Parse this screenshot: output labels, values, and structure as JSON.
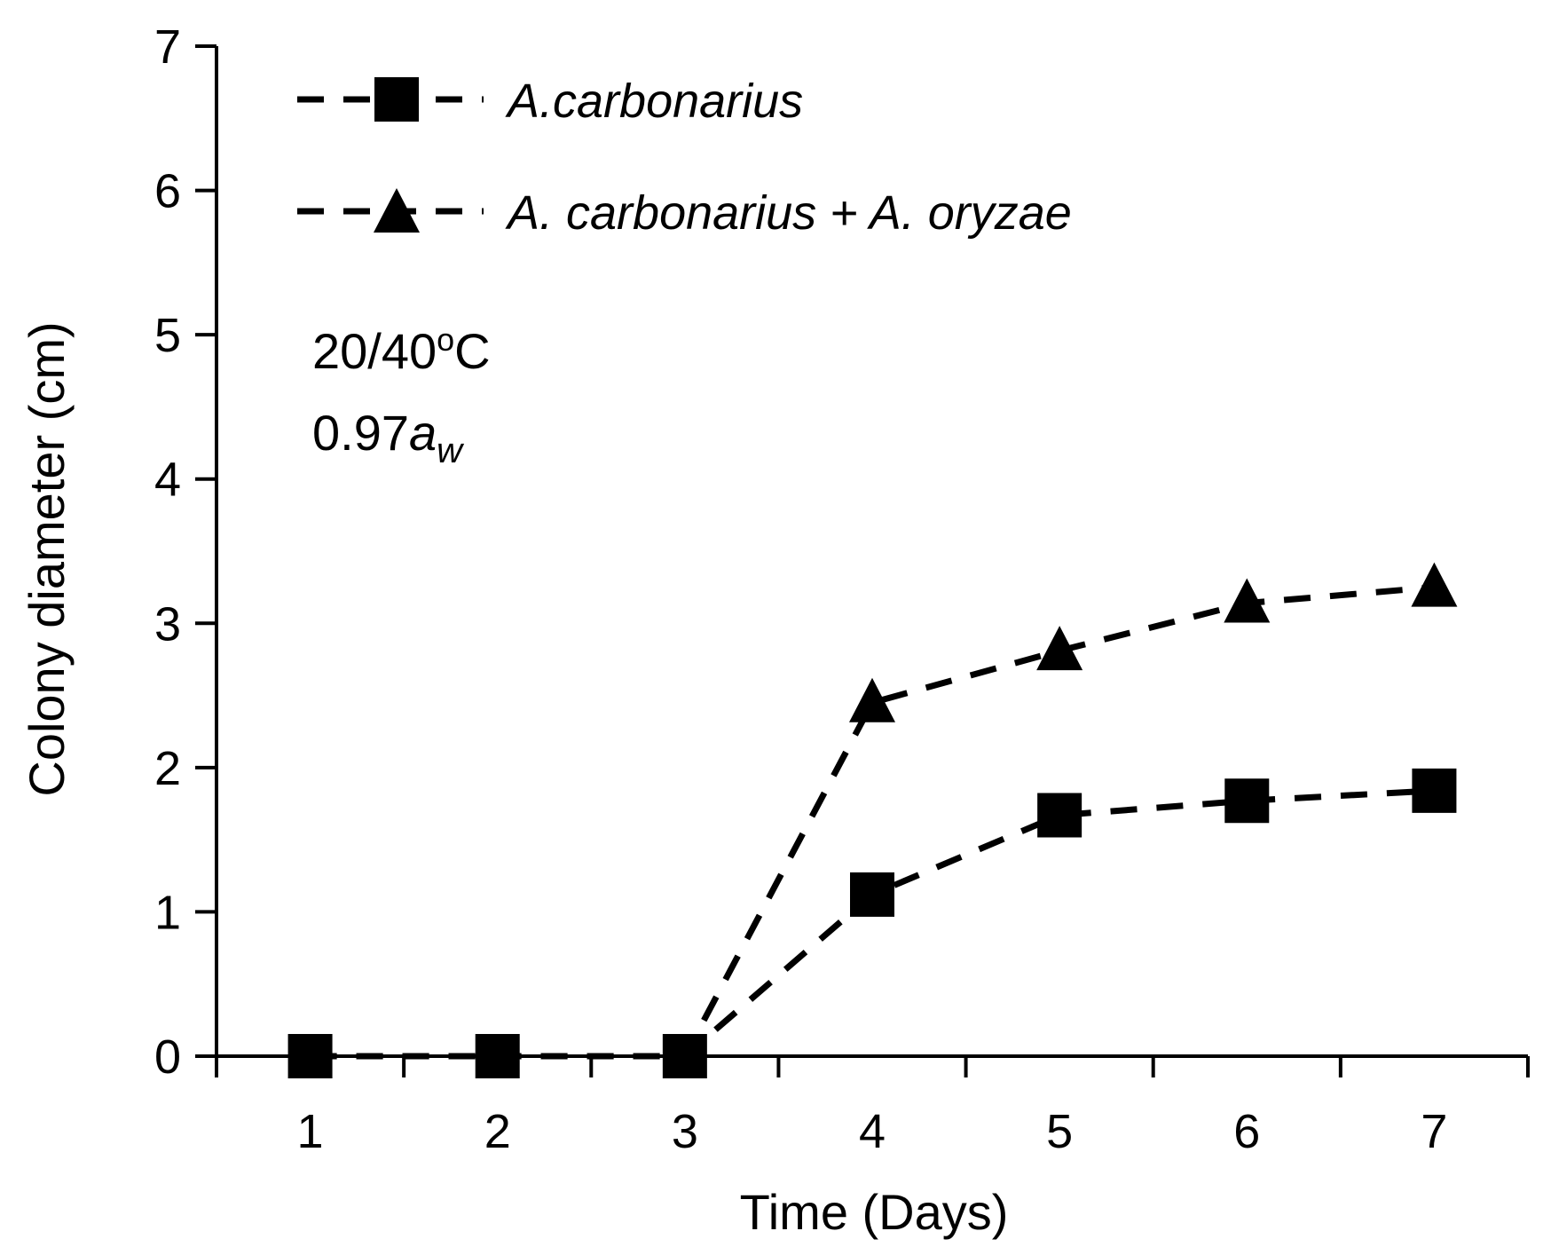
{
  "chart_data": {
    "type": "line",
    "title": "",
    "xlabel": "Time (Days)",
    "ylabel": "Colony diameter (cm)",
    "categories": [
      "1",
      "2",
      "3",
      "4",
      "5",
      "6",
      "7"
    ],
    "x": [
      1,
      2,
      3,
      4,
      5,
      6,
      7
    ],
    "ylim": [
      0,
      7
    ],
    "yticks": [
      0,
      1,
      2,
      3,
      4,
      5,
      6,
      7
    ],
    "grid": false,
    "legend_position": "top-left",
    "series": [
      {
        "name": "A.carbonarius",
        "marker": "square",
        "line_style": "dashed",
        "color": "#000000",
        "values": [
          0,
          0,
          0,
          1.12,
          1.67,
          1.77,
          1.84
        ]
      },
      {
        "name": "A. carbonarius + A. oryzae",
        "marker": "triangle",
        "line_style": "dashed",
        "color": "#000000",
        "values": [
          0,
          0,
          0,
          2.45,
          2.81,
          3.14,
          3.25
        ]
      }
    ],
    "annotations": {
      "condition_temperature": "20/40",
      "condition_temperature_degree": "o",
      "condition_temperature_unit": "C",
      "condition_water_value": "0.97",
      "condition_water_symbol": "a",
      "condition_water_subscript": "w"
    }
  }
}
